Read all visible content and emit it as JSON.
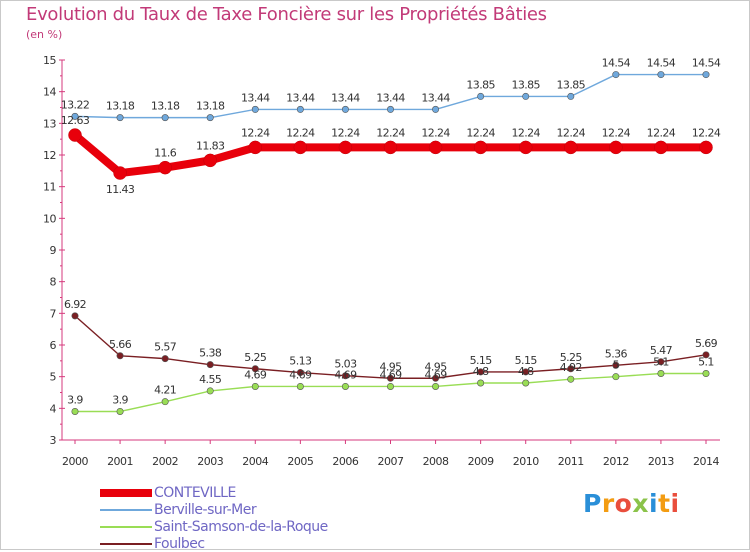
{
  "header": {
    "title": "Evolution du Taux de Taxe Foncière sur les Propriétés Bâties",
    "unit": "(en %)"
  },
  "brand": {
    "letters": [
      "P",
      "r",
      "o",
      "x",
      "i",
      "t",
      "i"
    ],
    "colors": [
      "#2a8fd8",
      "#f39c12",
      "#e94e3d",
      "#8bc34a",
      "#2a8fd8",
      "#f39c12",
      "#e94e3d"
    ]
  },
  "chart_data": {
    "type": "line",
    "title": "Evolution du Taux de Taxe Foncière sur les Propriétés Bâties",
    "ylabel": "(en %)",
    "xlabel": "",
    "ylim": [
      3,
      15
    ],
    "yticks": [
      "3",
      "4",
      "5",
      "6",
      "7",
      "8",
      "9",
      "10",
      "11",
      "12",
      "13",
      "14",
      "15"
    ],
    "grid": false,
    "categories": [
      "2000",
      "2001",
      "2002",
      "2003",
      "2004",
      "2005",
      "2006",
      "2007",
      "2008",
      "2009",
      "2010",
      "2011",
      "2012",
      "2013",
      "2014"
    ],
    "series": [
      {
        "name": "CONTEVILLE",
        "color": "#e8000b",
        "values": [
          12.63,
          11.43,
          11.6,
          11.83,
          12.24,
          12.24,
          12.24,
          12.24,
          12.24,
          12.24,
          12.24,
          12.24,
          12.24,
          12.24,
          12.24
        ],
        "labels": [
          "12.63",
          "11.43",
          "11.6",
          "11.83",
          "12.24",
          "12.24",
          "12.24",
          "12.24",
          "12.24",
          "12.24",
          "12.24",
          "12.24",
          "12.24",
          "12.24",
          "12.24"
        ],
        "label_pos": [
          "above",
          "below",
          "above",
          "above",
          "above",
          "above",
          "above",
          "above",
          "above",
          "above",
          "above",
          "above",
          "above",
          "above",
          "above"
        ]
      },
      {
        "name": "Berville-sur-Mer",
        "color": "#6fa8dc",
        "values": [
          13.22,
          13.18,
          13.18,
          13.18,
          13.44,
          13.44,
          13.44,
          13.44,
          13.44,
          13.85,
          13.85,
          13.85,
          14.54,
          14.54,
          14.54
        ],
        "labels": [
          "13.22",
          "13.18",
          "13.18",
          "13.18",
          "13.44",
          "13.44",
          "13.44",
          "13.44",
          "13.44",
          "13.85",
          "13.85",
          "13.85",
          "14.54",
          "14.54",
          "14.54"
        ],
        "label_pos": [
          "above",
          "above",
          "above",
          "above",
          "above",
          "above",
          "above",
          "above",
          "above",
          "above",
          "above",
          "above",
          "above",
          "above",
          "above"
        ]
      },
      {
        "name": "Saint-Samson-de-la-Roque",
        "color": "#99dd55",
        "values": [
          3.9,
          3.9,
          4.21,
          4.55,
          4.69,
          4.69,
          4.69,
          4.69,
          4.69,
          4.8,
          4.8,
          4.92,
          5.0,
          5.1,
          5.1
        ],
        "labels": [
          "3.9",
          "3.9",
          "4.21",
          "4.55",
          "4.69",
          "4.69",
          "4.69",
          "4.69",
          "4.69",
          "4.8",
          "4.8",
          "4.92",
          "5",
          "5.1",
          "5.1"
        ],
        "label_pos": [
          "above",
          "above",
          "above",
          "above",
          "above",
          "above",
          "above",
          "above",
          "above",
          "above",
          "above",
          "above",
          "above",
          "above",
          "above"
        ]
      },
      {
        "name": "Foulbec",
        "color": "#7a1f23",
        "values": [
          6.92,
          5.66,
          5.57,
          5.38,
          5.25,
          5.13,
          5.03,
          4.95,
          4.95,
          5.15,
          5.15,
          5.25,
          5.36,
          5.47,
          5.69
        ],
        "labels": [
          "6.92",
          "5.66",
          "5.57",
          "5.38",
          "5.25",
          "5.13",
          "5.03",
          "4.95",
          "4.95",
          "5.15",
          "5.15",
          "5.25",
          "5.36",
          "5.47",
          "5.69"
        ],
        "label_pos": [
          "above",
          "above",
          "above",
          "above",
          "above",
          "above",
          "above",
          "above",
          "above",
          "above",
          "above",
          "above",
          "above",
          "above",
          "above"
        ]
      }
    ]
  }
}
